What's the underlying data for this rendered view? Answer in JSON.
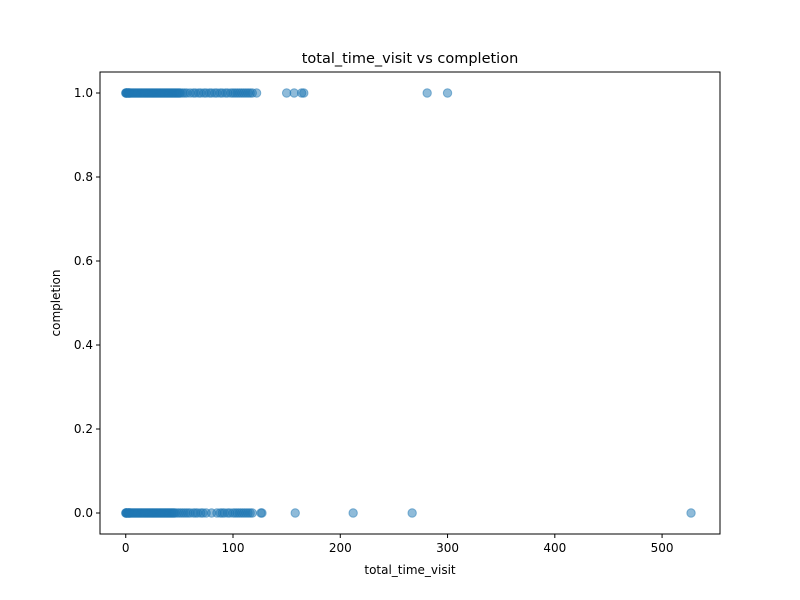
{
  "chart_data": {
    "type": "scatter",
    "title": "total_time_visit vs completion",
    "xlabel": "total_time_visit",
    "ylabel": "completion",
    "xlim": [
      -24,
      554
    ],
    "ylim": [
      -0.05,
      1.05
    ],
    "xticks": [
      0,
      100,
      200,
      300,
      400,
      500
    ],
    "xtick_labels": [
      "0",
      "100",
      "200",
      "300",
      "400",
      "500"
    ],
    "yticks": [
      0.0,
      0.2,
      0.4,
      0.6,
      0.8,
      1.0
    ],
    "ytick_labels": [
      "0.0",
      "0.2",
      "0.4",
      "0.6",
      "0.8",
      "1.0"
    ],
    "grid": false,
    "marker_color": "#1f77b4",
    "marker_alpha": 0.5,
    "series": [
      {
        "x": [
          0,
          0.3,
          0.6,
          1,
          1.5,
          2,
          2.5,
          3,
          3.5,
          4,
          5,
          6,
          7,
          8,
          9,
          10,
          11,
          12,
          13,
          14,
          15,
          16,
          17,
          18,
          19,
          20,
          21,
          22,
          23,
          24,
          25,
          26,
          27,
          28,
          29,
          30,
          31,
          32,
          33,
          34,
          35,
          36,
          37,
          38,
          39,
          40,
          41,
          42,
          43,
          44,
          45,
          46,
          47,
          48,
          49,
          50,
          51,
          53,
          55,
          57,
          60,
          63,
          65,
          68,
          70,
          73,
          75,
          78,
          80,
          83,
          85,
          88,
          90,
          93,
          95,
          98,
          100,
          102,
          104,
          106,
          108,
          110,
          112,
          114,
          116,
          118,
          122,
          150,
          157,
          164,
          166,
          281,
          300
        ],
        "y": [
          1,
          1,
          1,
          1,
          1,
          1,
          1,
          1,
          1,
          1,
          1,
          1,
          1,
          1,
          1,
          1,
          1,
          1,
          1,
          1,
          1,
          1,
          1,
          1,
          1,
          1,
          1,
          1,
          1,
          1,
          1,
          1,
          1,
          1,
          1,
          1,
          1,
          1,
          1,
          1,
          1,
          1,
          1,
          1,
          1,
          1,
          1,
          1,
          1,
          1,
          1,
          1,
          1,
          1,
          1,
          1,
          1,
          1,
          1,
          1,
          1,
          1,
          1,
          1,
          1,
          1,
          1,
          1,
          1,
          1,
          1,
          1,
          1,
          1,
          1,
          1,
          1,
          1,
          1,
          1,
          1,
          1,
          1,
          1,
          1,
          1,
          1,
          1,
          1,
          1,
          1,
          1,
          1
        ]
      },
      {
        "x": [
          0,
          0.3,
          0.6,
          1,
          1.5,
          2,
          2.5,
          3,
          3.5,
          4,
          5,
          6,
          7,
          8,
          9,
          10,
          11,
          12,
          13,
          14,
          15,
          16,
          17,
          18,
          19,
          20,
          21,
          22,
          23,
          24,
          25,
          26,
          27,
          28,
          29,
          30,
          31,
          32,
          33,
          34,
          35,
          36,
          37,
          38,
          39,
          40,
          41,
          42,
          43,
          44,
          45,
          46,
          48,
          50,
          52,
          54,
          56,
          58,
          60,
          63,
          65,
          67,
          70,
          72,
          75,
          80,
          85,
          88,
          90,
          92,
          95,
          97,
          100,
          102,
          104,
          106,
          108,
          110,
          112,
          114,
          116,
          118,
          126,
          127,
          158,
          212,
          267,
          527
        ],
        "y": [
          0,
          0,
          0,
          0,
          0,
          0,
          0,
          0,
          0,
          0,
          0,
          0,
          0,
          0,
          0,
          0,
          0,
          0,
          0,
          0,
          0,
          0,
          0,
          0,
          0,
          0,
          0,
          0,
          0,
          0,
          0,
          0,
          0,
          0,
          0,
          0,
          0,
          0,
          0,
          0,
          0,
          0,
          0,
          0,
          0,
          0,
          0,
          0,
          0,
          0,
          0,
          0,
          0,
          0,
          0,
          0,
          0,
          0,
          0,
          0,
          0,
          0,
          0,
          0,
          0,
          0,
          0,
          0,
          0,
          0,
          0,
          0,
          0,
          0,
          0,
          0,
          0,
          0,
          0,
          0,
          0,
          0,
          0,
          0,
          0,
          0,
          0,
          0
        ]
      }
    ]
  }
}
